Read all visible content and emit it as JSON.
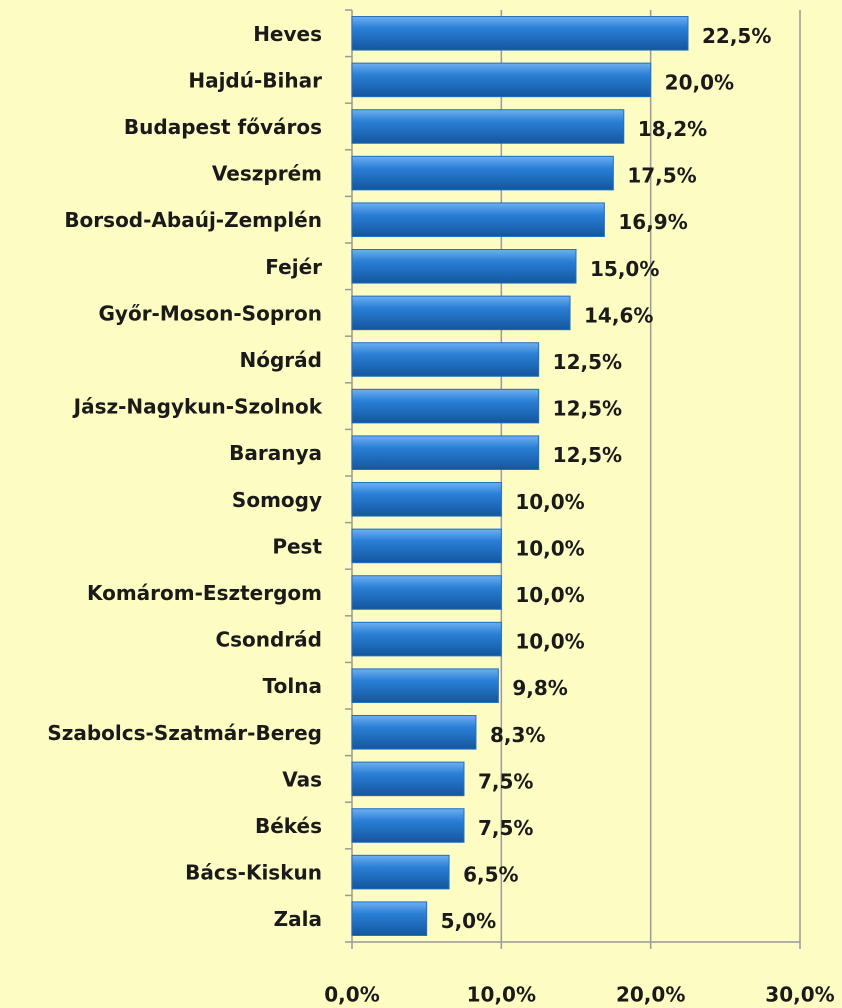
{
  "chart_data": {
    "type": "barh",
    "categories": [
      "Heves",
      "Hajdú-Bihar",
      "Budapest főváros",
      "Veszprém",
      "Borsod-Abaúj-Zemplén",
      "Fejér",
      "Győr-Moson-Sopron",
      "Nógrád",
      "Jász-Nagykun-Szolnok",
      "Baranya",
      "Somogy",
      "Pest",
      "Komárom-Esztergom",
      "Csondrád",
      "Tolna",
      "Szabolcs-Szatmár-Bereg",
      "Vas",
      "Békés",
      "Bács-Kiskun",
      "Zala"
    ],
    "values": [
      22.5,
      20.0,
      18.2,
      17.5,
      16.9,
      15.0,
      14.6,
      12.5,
      12.5,
      12.5,
      10.0,
      10.0,
      10.0,
      10.0,
      9.8,
      8.3,
      7.5,
      7.5,
      6.5,
      5.0
    ],
    "value_labels": [
      "22,5%",
      "20,0%",
      "18,2%",
      "17,5%",
      "16,9%",
      "15,0%",
      "14,6%",
      "12,5%",
      "12,5%",
      "12,5%",
      "10,0%",
      "10,0%",
      "10,0%",
      "10,0%",
      "9,8%",
      "8,3%",
      "7,5%",
      "7,5%",
      "6,5%",
      "5,0%"
    ],
    "color": "#1f6fc4",
    "xlim": [
      0,
      30
    ],
    "xticks": [
      {
        "value": 0,
        "label": "0,0%"
      },
      {
        "value": 10,
        "label": "10,0%"
      },
      {
        "value": 20,
        "label": "20,0%"
      },
      {
        "value": 30,
        "label": "30,0%"
      }
    ],
    "grid": true
  }
}
